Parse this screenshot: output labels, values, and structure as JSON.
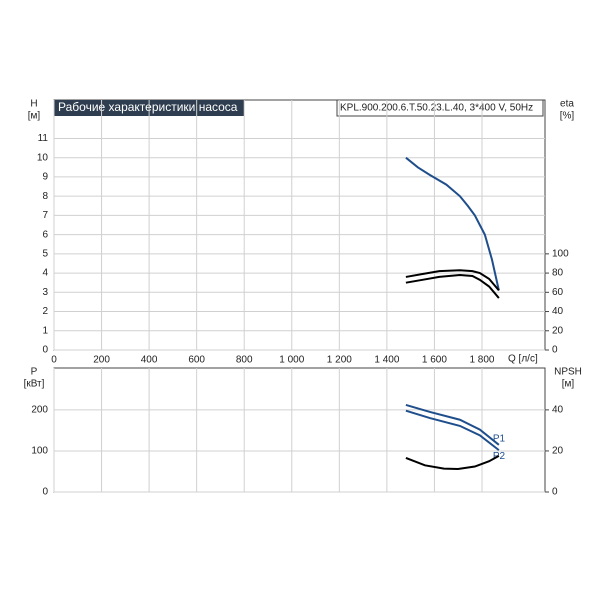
{
  "chart_data": [
    {
      "type": "line",
      "title": "Рабочие характеристики насоса",
      "subtitle": "KPL.900.200.6.T.50.23.L.40, 3*400 V, 50Hz",
      "xlabel": "Q [л/с]",
      "ylabel": "H",
      "yunit": "[м]",
      "y2label": "eta",
      "y2unit": "[%]",
      "xlim": [
        0,
        2065
      ],
      "ylim": [
        0,
        13
      ],
      "y2lim": [
        0,
        260
      ],
      "xticks": [
        0,
        200,
        400,
        600,
        800,
        {
          "value": 1000,
          "label": "1 000"
        },
        {
          "value": 1200,
          "label": "1 200"
        },
        {
          "value": 1400,
          "label": "1 400"
        },
        {
          "value": 1600,
          "label": "1 600"
        },
        {
          "value": 1800,
          "label": "1 800"
        }
      ],
      "yticks": [
        0,
        1,
        2,
        3,
        4,
        5,
        6,
        7,
        8,
        9,
        10,
        11
      ],
      "y2ticks": [
        0,
        20,
        40,
        60,
        80,
        100
      ],
      "grid": true,
      "series": [
        {
          "color": "#1f4e8c",
          "x": [
            1480,
            1530,
            1581,
            1650,
            1707,
            1740,
            1770,
            1812,
            1842,
            1871
          ],
          "values": [
            10.0,
            9.5,
            9.1,
            8.6,
            8.0,
            7.5,
            7.0,
            6.0,
            4.7,
            3.1
          ]
        },
        {
          "color": "#000000",
          "axis": "y2",
          "x": [
            1480,
            1550,
            1620,
            1707,
            1760,
            1791,
            1830,
            1871
          ],
          "values": [
            76,
            79,
            82,
            83,
            82,
            80,
            74,
            62
          ]
        },
        {
          "color": "#000000",
          "axis": "y2",
          "x": [
            1480,
            1550,
            1620,
            1707,
            1760,
            1791,
            1830,
            1871
          ],
          "values": [
            70,
            73,
            76,
            78,
            77,
            73,
            66,
            54
          ]
        }
      ]
    },
    {
      "type": "line",
      "ylabel": "P",
      "yunit": "[кВт]",
      "y2label": "NPSH",
      "y2unit": "[м]",
      "xlim": [
        0,
        2065
      ],
      "ylim": [
        0,
        302
      ],
      "y2lim": [
        0,
        60.4
      ],
      "xticks": [
        0,
        200,
        400,
        600,
        800,
        1000,
        1200,
        1400,
        1600,
        1800
      ],
      "yticks": [
        0,
        100,
        200
      ],
      "y2ticks": [
        0,
        20,
        40
      ],
      "grid": true,
      "series": [
        {
          "name": "P1",
          "color": "#1f4e8c",
          "x": [
            1480,
            1581,
            1707,
            1791,
            1871
          ],
          "values": [
            212,
            195,
            176,
            152,
            115
          ]
        },
        {
          "name": "P2",
          "color": "#1f4e8c",
          "x": [
            1480,
            1581,
            1707,
            1791,
            1871
          ],
          "values": [
            198,
            180,
            161,
            138,
            102
          ]
        },
        {
          "color": "#000000",
          "axis": "y2",
          "x": [
            1480,
            1560,
            1640,
            1699,
            1770,
            1830,
            1871
          ],
          "values": [
            16.6,
            13.0,
            11.4,
            11.2,
            12.4,
            15.0,
            17.6
          ]
        }
      ]
    }
  ]
}
